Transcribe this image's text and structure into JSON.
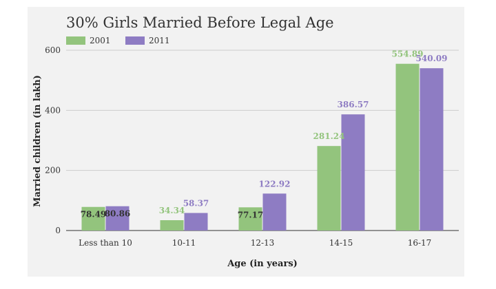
{
  "chart_data": {
    "type": "bar",
    "title": "30% Girls Married Before Legal Age",
    "xlabel": "Age (in years)",
    "ylabel": "Married children (in lakh)",
    "categories": [
      "Less than 10",
      "10-11",
      "12-13",
      "14-15",
      "16-17"
    ],
    "series": [
      {
        "name": "2001",
        "color": "#93c47d",
        "values": [
          78.49,
          34.34,
          77.17,
          281.24,
          554.89
        ],
        "labels": [
          "78.49",
          "34.34",
          "77.17",
          "281.24",
          "554.89"
        ]
      },
      {
        "name": "2011",
        "color": "#8e7cc3",
        "values": [
          80.86,
          58.37,
          122.92,
          386.57,
          540.09
        ],
        "labels": [
          "80.86",
          "58.37",
          "122.92",
          "386.57",
          "540.09"
        ]
      }
    ],
    "ylim": [
      0,
      600
    ],
    "yticks": [
      0,
      200,
      400,
      600
    ],
    "grid": true,
    "legend": "top-left"
  }
}
